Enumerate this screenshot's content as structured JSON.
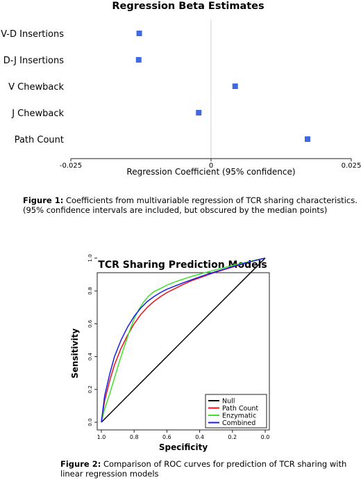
{
  "chart_data": [
    {
      "type": "scatter",
      "title": "Regression Beta Estimates",
      "xlabel": "Regression Coefficient (95% confidence)",
      "ylabel": "",
      "xlim": [
        -0.025,
        0.025
      ],
      "x_tick_values": [
        -0.025,
        0,
        0.025
      ],
      "x_tick_labels": [
        "-0.025",
        "0",
        "0.025"
      ],
      "reference_line_x": 0,
      "marker": "square",
      "marker_color": "#4169e1",
      "categories": [
        "V-D Insertions",
        "D-J Insertions",
        "V Chewback",
        "J Chewback",
        "Path Count"
      ],
      "values": [
        -0.0128,
        -0.0129,
        0.0043,
        -0.0022,
        0.0172
      ]
    },
    {
      "type": "line",
      "title": "TCR Sharing Prediction Models",
      "xlabel": "Specificity",
      "ylabel": "Sensitivity",
      "x_reversed": true,
      "xlim": [
        1.0,
        0.0
      ],
      "ylim": [
        0.0,
        1.0
      ],
      "x_tick_values": [
        1.0,
        0.8,
        0.6,
        0.4,
        0.2,
        0.0
      ],
      "x_tick_labels": [
        "1.0",
        "0.8",
        "0.6",
        "0.4",
        "0.2",
        "0.0"
      ],
      "y_tick_values": [
        0.0,
        0.2,
        0.4,
        0.6,
        0.8,
        1.0
      ],
      "y_tick_labels": [
        "0.0",
        "0.2",
        "0.4",
        "0.6",
        "0.8",
        "1.0"
      ],
      "legend_position": "bottom-right",
      "series": [
        {
          "name": "Null",
          "color": "#000000",
          "x": [
            1.0,
            0.0
          ],
          "y": [
            0.0,
            1.0
          ]
        },
        {
          "name": "Path Count",
          "color": "#e8141a",
          "x": [
            1.0,
            0.98,
            0.95,
            0.92,
            0.88,
            0.84,
            0.8,
            0.76,
            0.72,
            0.68,
            0.64,
            0.6,
            0.55,
            0.5,
            0.45,
            0.4,
            0.35,
            0.3,
            0.25,
            0.2,
            0.15,
            0.1,
            0.05,
            0.0
          ],
          "y": [
            0.0,
            0.13,
            0.25,
            0.35,
            0.45,
            0.53,
            0.6,
            0.655,
            0.7,
            0.735,
            0.765,
            0.79,
            0.815,
            0.84,
            0.862,
            0.88,
            0.898,
            0.915,
            0.93,
            0.945,
            0.96,
            0.975,
            0.988,
            1.0
          ]
        },
        {
          "name": "Enzymatic",
          "color": "#3fe22a",
          "x": [
            1.0,
            0.98,
            0.95,
            0.92,
            0.89,
            0.86,
            0.83,
            0.8,
            0.77,
            0.74,
            0.71,
            0.68,
            0.64,
            0.6,
            0.55,
            0.5,
            0.45,
            0.4,
            0.35,
            0.3,
            0.25,
            0.2,
            0.15,
            0.1,
            0.05,
            0.0
          ],
          "y": [
            0.0,
            0.08,
            0.17,
            0.27,
            0.37,
            0.46,
            0.55,
            0.63,
            0.69,
            0.735,
            0.77,
            0.795,
            0.815,
            0.835,
            0.855,
            0.872,
            0.888,
            0.902,
            0.916,
            0.929,
            0.942,
            0.955,
            0.967,
            0.978,
            0.99,
            1.0
          ]
        },
        {
          "name": "Combined",
          "color": "#1c1ce8",
          "x": [
            1.0,
            0.98,
            0.95,
            0.92,
            0.88,
            0.84,
            0.8,
            0.76,
            0.72,
            0.68,
            0.64,
            0.6,
            0.55,
            0.5,
            0.45,
            0.4,
            0.35,
            0.3,
            0.25,
            0.2,
            0.15,
            0.1,
            0.05,
            0.0
          ],
          "y": [
            0.0,
            0.16,
            0.29,
            0.4,
            0.5,
            0.58,
            0.645,
            0.695,
            0.735,
            0.765,
            0.79,
            0.81,
            0.83,
            0.85,
            0.868,
            0.885,
            0.902,
            0.918,
            0.933,
            0.948,
            0.962,
            0.976,
            0.988,
            1.0
          ]
        }
      ]
    }
  ],
  "captions": {
    "fig1_label": "Figure 1:",
    "fig1_text": " Coefficients from multivariable regression of TCR sharing characteristics. (95% confidence intervals are included, but obscured by the median points)",
    "fig2_label": "Figure 2:",
    "fig2_text": " Comparison of ROC curves for prediction of TCR sharing with linear regression models"
  }
}
